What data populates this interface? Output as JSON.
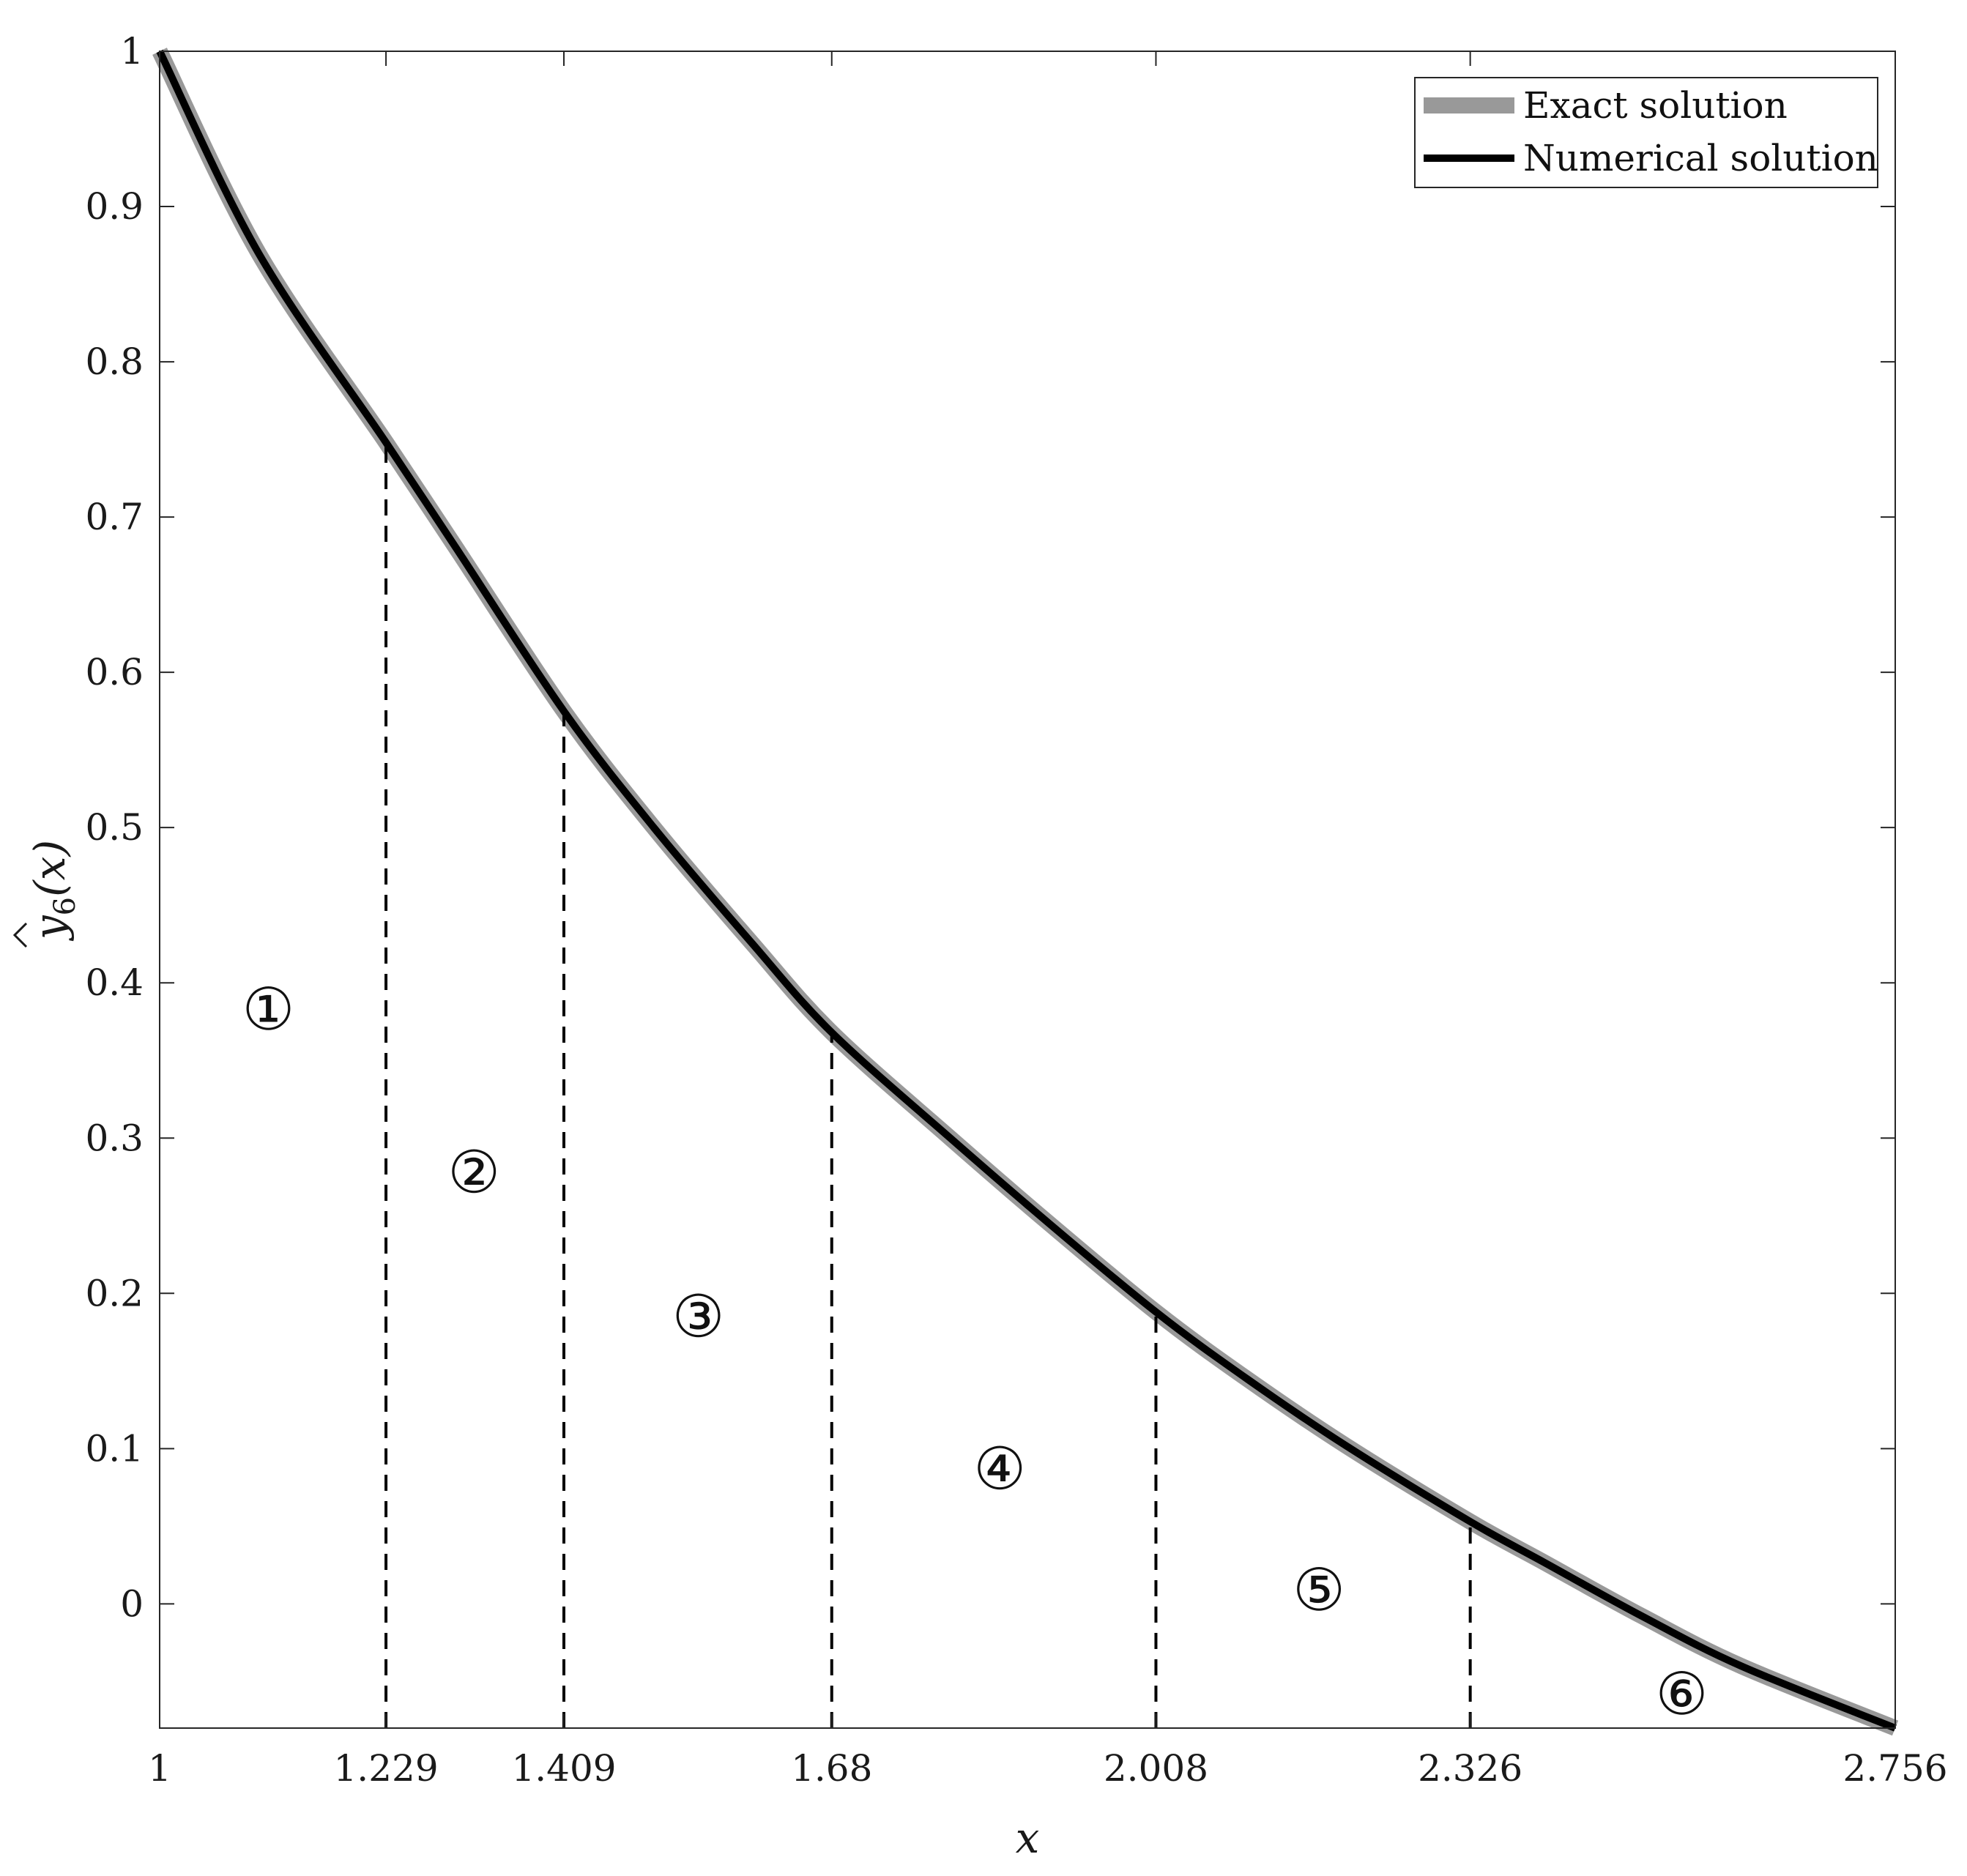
{
  "chart_data": {
    "type": "line",
    "title": "",
    "xlabel": "x",
    "ylabel": "ŷ6(x)",
    "ylabel_parts": {
      "base": "y",
      "subscript": "6",
      "argument": "(x)"
    },
    "xlim": [
      1,
      2.756
    ],
    "ylim": [
      -0.08,
      1.0
    ],
    "x_ticks": [
      1,
      1.229,
      1.409,
      1.68,
      2.008,
      2.326,
      2.756
    ],
    "x_tick_labels": [
      "1",
      "1.229",
      "1.409",
      "1.68",
      "2.008",
      "2.326",
      "2.756"
    ],
    "y_ticks": [
      0,
      0.1,
      0.2,
      0.3,
      0.4,
      0.5,
      0.6,
      0.7,
      0.8,
      0.9,
      1
    ],
    "y_tick_labels": [
      "0",
      "0.1",
      "0.2",
      "0.3",
      "0.4",
      "0.5",
      "0.6",
      "0.7",
      "0.8",
      "0.9",
      "1"
    ],
    "grid": false,
    "legend_position": "top-right",
    "series": [
      {
        "name": "Exact solution",
        "color": "#999999",
        "x": [
          1.0,
          1.1,
          1.229,
          1.3,
          1.409,
          1.5,
          1.6,
          1.68,
          1.8,
          1.9,
          2.008,
          2.1,
          2.2,
          2.326,
          2.4,
          2.5,
          2.6,
          2.756
        ],
        "y": [
          1.0,
          0.87,
          0.748,
          0.68,
          0.575,
          0.5,
          0.425,
          0.368,
          0.3,
          0.245,
          0.188,
          0.145,
          0.102,
          0.053,
          0.027,
          -0.008,
          -0.04,
          -0.08
        ]
      },
      {
        "name": "Numerical solution",
        "color": "#000000",
        "x": [
          1.0,
          1.1,
          1.229,
          1.3,
          1.409,
          1.5,
          1.6,
          1.68,
          1.8,
          1.9,
          2.008,
          2.1,
          2.2,
          2.326,
          2.4,
          2.5,
          2.6,
          2.756
        ],
        "y": [
          1.0,
          0.87,
          0.748,
          0.68,
          0.575,
          0.5,
          0.425,
          0.368,
          0.3,
          0.245,
          0.188,
          0.145,
          0.102,
          0.053,
          0.027,
          -0.008,
          -0.04,
          -0.08
        ]
      }
    ],
    "breakpoints": [
      {
        "x": 1.229,
        "y": 0.748
      },
      {
        "x": 1.409,
        "y": 0.575
      },
      {
        "x": 1.68,
        "y": 0.368
      },
      {
        "x": 2.008,
        "y": 0.188
      },
      {
        "x": 2.326,
        "y": 0.053
      }
    ],
    "region_labels": [
      {
        "text": "①",
        "x": 1.11,
        "y": 0.383
      },
      {
        "text": "②",
        "x": 1.318,
        "y": 0.278
      },
      {
        "text": "③",
        "x": 1.545,
        "y": 0.185
      },
      {
        "text": "④",
        "x": 1.85,
        "y": 0.087
      },
      {
        "text": "⑤",
        "x": 2.173,
        "y": 0.009
      },
      {
        "text": "⑥",
        "x": 2.54,
        "y": -0.058
      }
    ]
  }
}
